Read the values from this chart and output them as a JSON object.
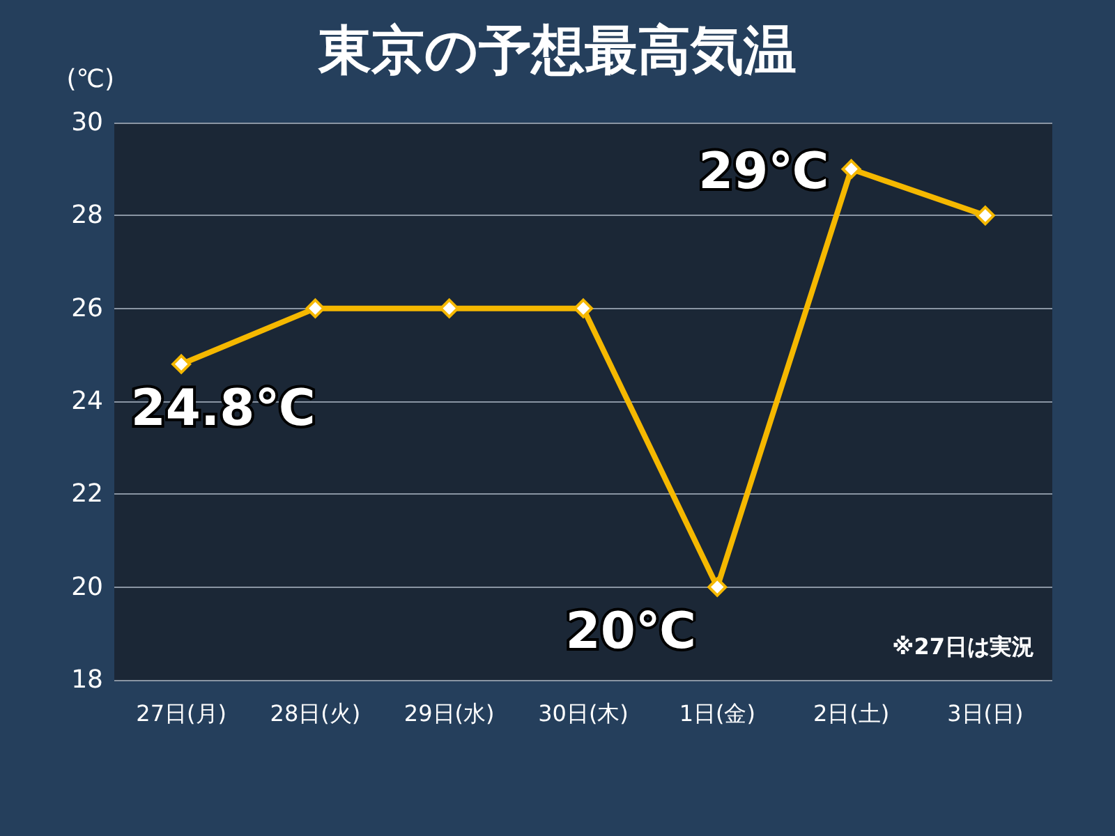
{
  "chart_data": {
    "type": "line",
    "title": "東京の予想最高気温",
    "ylabel": "(℃)",
    "categories": [
      "27日(月)",
      "28日(火)",
      "29日(水)",
      "30日(木)",
      "1日(金)",
      "2日(土)",
      "3日(日)"
    ],
    "series": [
      {
        "color": "#f5b800",
        "values": [
          24.8,
          26,
          26,
          26,
          20,
          29,
          28
        ],
        "value_labels": [
          "24.8℃",
          null,
          null,
          null,
          "20℃",
          "29℃",
          null
        ]
      }
    ],
    "ylim": [
      18,
      30
    ],
    "yticks": [
      18,
      20,
      22,
      24,
      26,
      28,
      30
    ],
    "grid": "y",
    "marker": "diamond",
    "line_style": "solid",
    "annotations": [
      "※27日は実況"
    ]
  }
}
